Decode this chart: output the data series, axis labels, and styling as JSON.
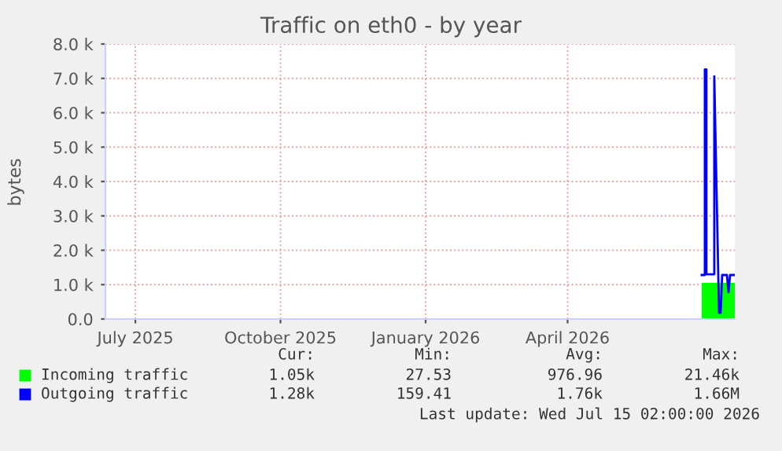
{
  "chart_data": {
    "type": "line",
    "title": "Traffic on eth0 - by year",
    "ylabel": "bytes",
    "xlim": [
      "2025-06-12",
      "2026-07-16"
    ],
    "xticks": [
      {
        "value": "2025-07-01",
        "label": "July 2025"
      },
      {
        "value": "2025-10-01",
        "label": "October 2025"
      },
      {
        "value": "2026-01-01",
        "label": "January 2026"
      },
      {
        "value": "2026-04-01",
        "label": "April 2026"
      }
    ],
    "ylim": [
      0,
      8000
    ],
    "yticks": [
      {
        "value": 0,
        "label": "0.0"
      },
      {
        "value": 1000,
        "label": "1.0 k"
      },
      {
        "value": 2000,
        "label": "2.0 k"
      },
      {
        "value": 3000,
        "label": "3.0 k"
      },
      {
        "value": 4000,
        "label": "4.0 k"
      },
      {
        "value": 5000,
        "label": "5.0 k"
      },
      {
        "value": 6000,
        "label": "6.0 k"
      },
      {
        "value": 7000,
        "label": "7.0 k"
      },
      {
        "value": 8000,
        "label": "8.0 k"
      }
    ],
    "grid": true,
    "legend": "bottom",
    "series": [
      {
        "name": "Incoming traffic",
        "type": "area",
        "color": "#00ff00",
        "x": [
          "2026-06-25",
          "2026-07-16"
        ],
        "values": [
          1050,
          1050
        ]
      },
      {
        "name": "Outgoing traffic",
        "color": "#0000ff",
        "x": [
          "2026-06-25",
          "2026-06-27",
          "2026-06-27",
          "2026-06-28",
          "2026-06-28",
          "2026-07-03",
          "2026-07-03",
          "2026-07-06",
          "2026-07-07",
          "2026-07-08",
          "2026-07-11",
          "2026-07-12",
          "2026-07-13",
          "2026-07-16"
        ],
        "values": [
          1280,
          1280,
          7260,
          7260,
          1300,
          1300,
          7060,
          180,
          180,
          1280,
          1280,
          780,
          1280,
          1280
        ]
      }
    ],
    "annotations": [
      "Cur:",
      "Min:",
      "Avg:",
      "Max:",
      "1.05k",
      "27.53",
      "976.96",
      "21.46k",
      "1.28k",
      "159.41",
      "1.76k",
      "1.66M",
      "Last update: Wed Jul 15 02:00:00 2026"
    ]
  }
}
